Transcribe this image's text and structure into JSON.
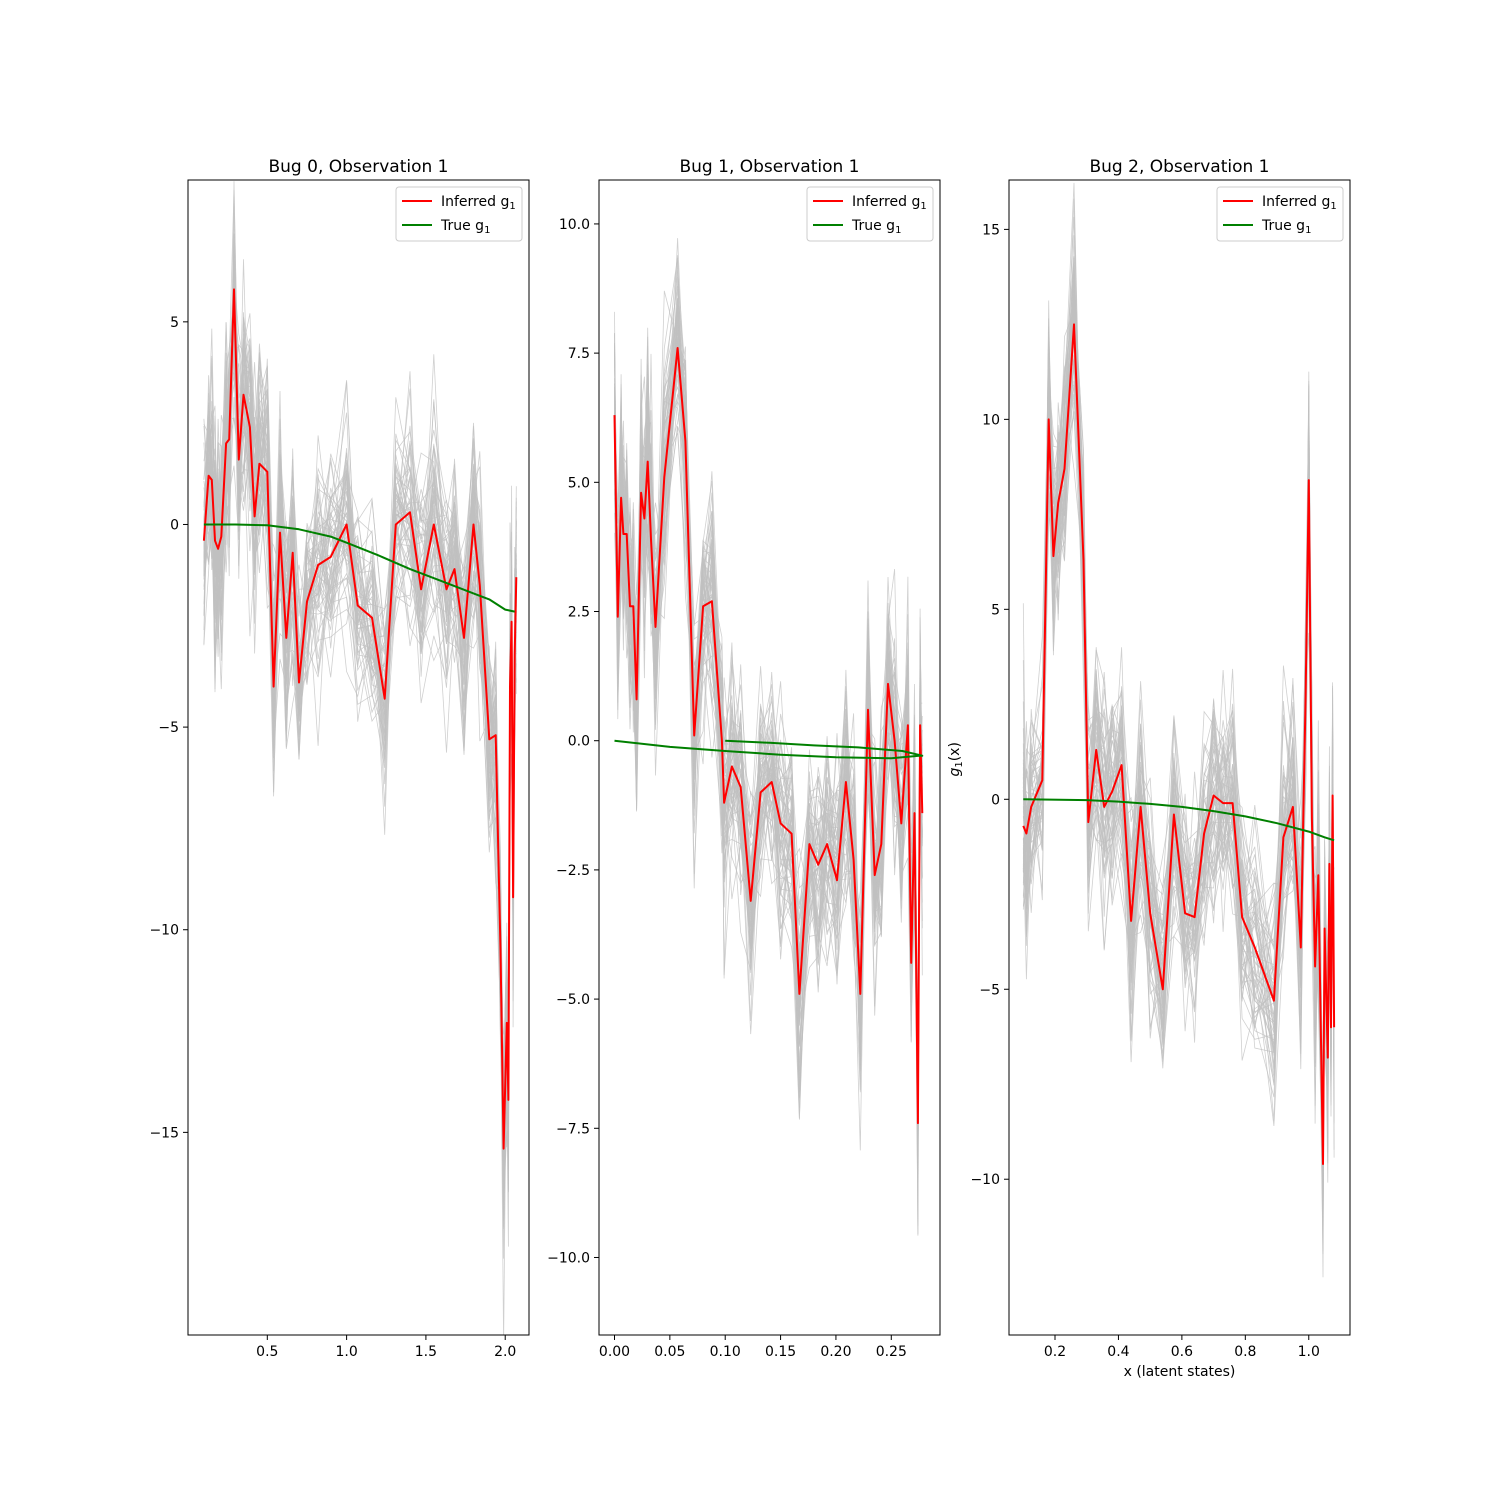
{
  "chart_data": [
    {
      "type": "line",
      "title": "Bug 0, Observation 1",
      "xlabel": "",
      "ylabel": "",
      "xlim": [
        0.0,
        2.15
      ],
      "ylim": [
        -20.0,
        8.5
      ],
      "xticks": [
        0.5,
        1.0,
        1.5,
        2.0
      ],
      "xtick_labels": [
        "0.5",
        "1.0",
        "1.5",
        "2.0"
      ],
      "yticks": [
        5,
        0,
        -5,
        -10,
        -15
      ],
      "ytick_labels": [
        "5",
        "0",
        "−5",
        "−10",
        "−15"
      ],
      "legend": {
        "placement": "top-right",
        "entries": [
          {
            "label": "Inferred g",
            "subscript": "1",
            "color": "#ff0000"
          },
          {
            "label": "True g",
            "subscript": "1",
            "color": "#008000"
          }
        ]
      },
      "samples_color": "#c0c0c0",
      "series": [
        {
          "name": "Inferred g1",
          "color": "#ff0000",
          "x": [
            0.1,
            0.13,
            0.15,
            0.17,
            0.19,
            0.21,
            0.24,
            0.26,
            0.29,
            0.32,
            0.35,
            0.39,
            0.42,
            0.45,
            0.5,
            0.54,
            0.58,
            0.62,
            0.66,
            0.7,
            0.75,
            0.82,
            0.9,
            1.0,
            1.07,
            1.16,
            1.24,
            1.31,
            1.4,
            1.47,
            1.55,
            1.63,
            1.68,
            1.74,
            1.8,
            1.84,
            1.9,
            1.94,
            1.97,
            1.99,
            2.01,
            2.02,
            2.03,
            2.04,
            2.05,
            2.06,
            2.07
          ],
          "y": [
            -0.4,
            1.2,
            1.1,
            -0.4,
            -0.6,
            -0.3,
            2.0,
            2.1,
            5.8,
            1.6,
            3.2,
            2.4,
            0.2,
            1.5,
            1.3,
            -4.0,
            -0.2,
            -2.8,
            -0.7,
            -3.9,
            -1.9,
            -1.0,
            -0.8,
            0.0,
            -2.0,
            -2.3,
            -4.3,
            0.0,
            0.3,
            -1.6,
            0.0,
            -1.6,
            -1.1,
            -2.8,
            0.0,
            -1.5,
            -5.3,
            -5.2,
            -10.5,
            -15.4,
            -12.3,
            -14.2,
            -4.0,
            -2.4,
            -9.2,
            -3.2,
            -1.3
          ]
        },
        {
          "name": "True g1",
          "color": "#008000",
          "x": [
            0.1,
            0.3,
            0.5,
            0.7,
            0.9,
            1.0,
            1.2,
            1.4,
            1.6,
            1.8,
            1.9,
            2.0,
            2.06
          ],
          "y": [
            0.0,
            0.0,
            -0.02,
            -0.12,
            -0.3,
            -0.45,
            -0.76,
            -1.1,
            -1.4,
            -1.7,
            -1.85,
            -2.1,
            -2.15
          ]
        }
      ]
    },
    {
      "type": "line",
      "title": "Bug 1, Observation 1",
      "xlabel": "",
      "ylabel": "",
      "xlim": [
        -0.014,
        0.294
      ],
      "ylim": [
        -11.5,
        10.85
      ],
      "xticks": [
        0.0,
        0.05,
        0.1,
        0.15,
        0.2,
        0.25
      ],
      "xtick_labels": [
        "0.00",
        "0.05",
        "0.10",
        "0.15",
        "0.20",
        "0.25"
      ],
      "yticks": [
        10.0,
        7.5,
        5.0,
        2.5,
        0.0,
        -2.5,
        -5.0,
        -7.5,
        -10.0
      ],
      "ytick_labels": [
        "10.0",
        "7.5",
        "5.0",
        "2.5",
        "0.0",
        "−2.5",
        "−5.0",
        "−7.5",
        "−10.0"
      ],
      "legend": {
        "placement": "top-right",
        "entries": [
          {
            "label": "Inferred g",
            "subscript": "1",
            "color": "#ff0000"
          },
          {
            "label": "True g",
            "subscript": "1",
            "color": "#008000"
          }
        ]
      },
      "samples_color": "#c0c0c0",
      "series": [
        {
          "name": "Inferred g1",
          "color": "#ff0000",
          "x": [
            0.0,
            0.003,
            0.006,
            0.008,
            0.011,
            0.014,
            0.017,
            0.02,
            0.024,
            0.027,
            0.03,
            0.033,
            0.037,
            0.045,
            0.057,
            0.064,
            0.072,
            0.08,
            0.088,
            0.097,
            0.099,
            0.106,
            0.114,
            0.123,
            0.132,
            0.142,
            0.15,
            0.16,
            0.167,
            0.176,
            0.184,
            0.192,
            0.201,
            0.209,
            0.216,
            0.222,
            0.229,
            0.235,
            0.241,
            0.247,
            0.253,
            0.259,
            0.265,
            0.268,
            0.271,
            0.274,
            0.276,
            0.278
          ],
          "y": [
            6.3,
            2.4,
            4.7,
            4.0,
            4.0,
            2.6,
            2.6,
            0.8,
            4.8,
            4.3,
            5.4,
            3.9,
            2.2,
            5.1,
            7.6,
            5.8,
            0.1,
            2.6,
            2.7,
            0.0,
            -1.2,
            -0.5,
            -0.9,
            -3.1,
            -1.0,
            -0.8,
            -1.6,
            -1.8,
            -4.9,
            -2.0,
            -2.4,
            -2.0,
            -2.7,
            -0.8,
            -2.3,
            -4.9,
            0.6,
            -2.6,
            -2.0,
            1.1,
            0.0,
            -1.6,
            0.3,
            -4.3,
            -1.4,
            -7.4,
            0.3,
            -1.4
          ]
        },
        {
          "name": "True g1",
          "color": "#008000",
          "x": [
            0.0,
            0.05,
            0.1,
            0.15,
            0.2,
            0.25,
            0.275,
            0.278,
            0.26,
            0.22,
            0.18,
            0.14,
            0.1
          ],
          "y": [
            0.0,
            -0.12,
            -0.2,
            -0.27,
            -0.32,
            -0.34,
            -0.29,
            -0.29,
            -0.2,
            -0.13,
            -0.09,
            -0.04,
            0.0
          ]
        }
      ]
    },
    {
      "type": "line",
      "title": "Bug 2, Observation 1",
      "xlabel": "x (latent states)",
      "ylabel": "g",
      "ylabel_subscript": "1",
      "ylabel_suffix": "(x)",
      "xlim": [
        0.055,
        1.13
      ],
      "ylim": [
        -14.1,
        16.3
      ],
      "xticks": [
        0.2,
        0.4,
        0.6,
        0.8,
        1.0
      ],
      "xtick_labels": [
        "0.2",
        "0.4",
        "0.6",
        "0.8",
        "1.0"
      ],
      "yticks": [
        15,
        10,
        5,
        0,
        -5,
        -10
      ],
      "ytick_labels": [
        "15",
        "10",
        "5",
        "0",
        "−5",
        "−10"
      ],
      "legend": {
        "placement": "top-right",
        "entries": [
          {
            "label": "Inferred g",
            "subscript": "1",
            "color": "#ff0000"
          },
          {
            "label": "True g",
            "subscript": "1",
            "color": "#008000"
          }
        ]
      },
      "samples_color": "#c0c0c0",
      "series": [
        {
          "name": "Inferred g1",
          "color": "#ff0000",
          "x": [
            0.1,
            0.11,
            0.125,
            0.16,
            0.18,
            0.195,
            0.21,
            0.23,
            0.26,
            0.29,
            0.305,
            0.33,
            0.355,
            0.38,
            0.41,
            0.44,
            0.47,
            0.5,
            0.54,
            0.575,
            0.61,
            0.64,
            0.67,
            0.7,
            0.73,
            0.76,
            0.79,
            0.83,
            0.89,
            0.92,
            0.95,
            0.975,
            0.99,
            1.0,
            1.01,
            1.02,
            1.03,
            1.045,
            1.05,
            1.06,
            1.065,
            1.07,
            1.075,
            1.08
          ],
          "y": [
            -0.7,
            -0.9,
            -0.2,
            0.5,
            10.0,
            6.4,
            7.8,
            8.7,
            12.5,
            6.3,
            -0.6,
            1.3,
            -0.2,
            0.2,
            0.9,
            -3.2,
            -0.2,
            -3.0,
            -5.0,
            -0.4,
            -3.0,
            -3.1,
            -0.9,
            0.1,
            -0.1,
            -0.1,
            -3.1,
            -3.9,
            -5.3,
            -1.0,
            -0.2,
            -3.9,
            2.7,
            8.4,
            -0.5,
            -4.4,
            -2.0,
            -9.6,
            -3.4,
            -6.8,
            -1.7,
            -6.0,
            0.1,
            -6.0
          ]
        },
        {
          "name": "True g1",
          "color": "#008000",
          "x": [
            0.1,
            0.3,
            0.4,
            0.5,
            0.6,
            0.7,
            0.8,
            0.9,
            1.0,
            1.05,
            1.08
          ],
          "y": [
            0.0,
            -0.02,
            -0.06,
            -0.12,
            -0.2,
            -0.31,
            -0.45,
            -0.63,
            -0.85,
            -1.0,
            -1.08
          ]
        }
      ]
    }
  ]
}
